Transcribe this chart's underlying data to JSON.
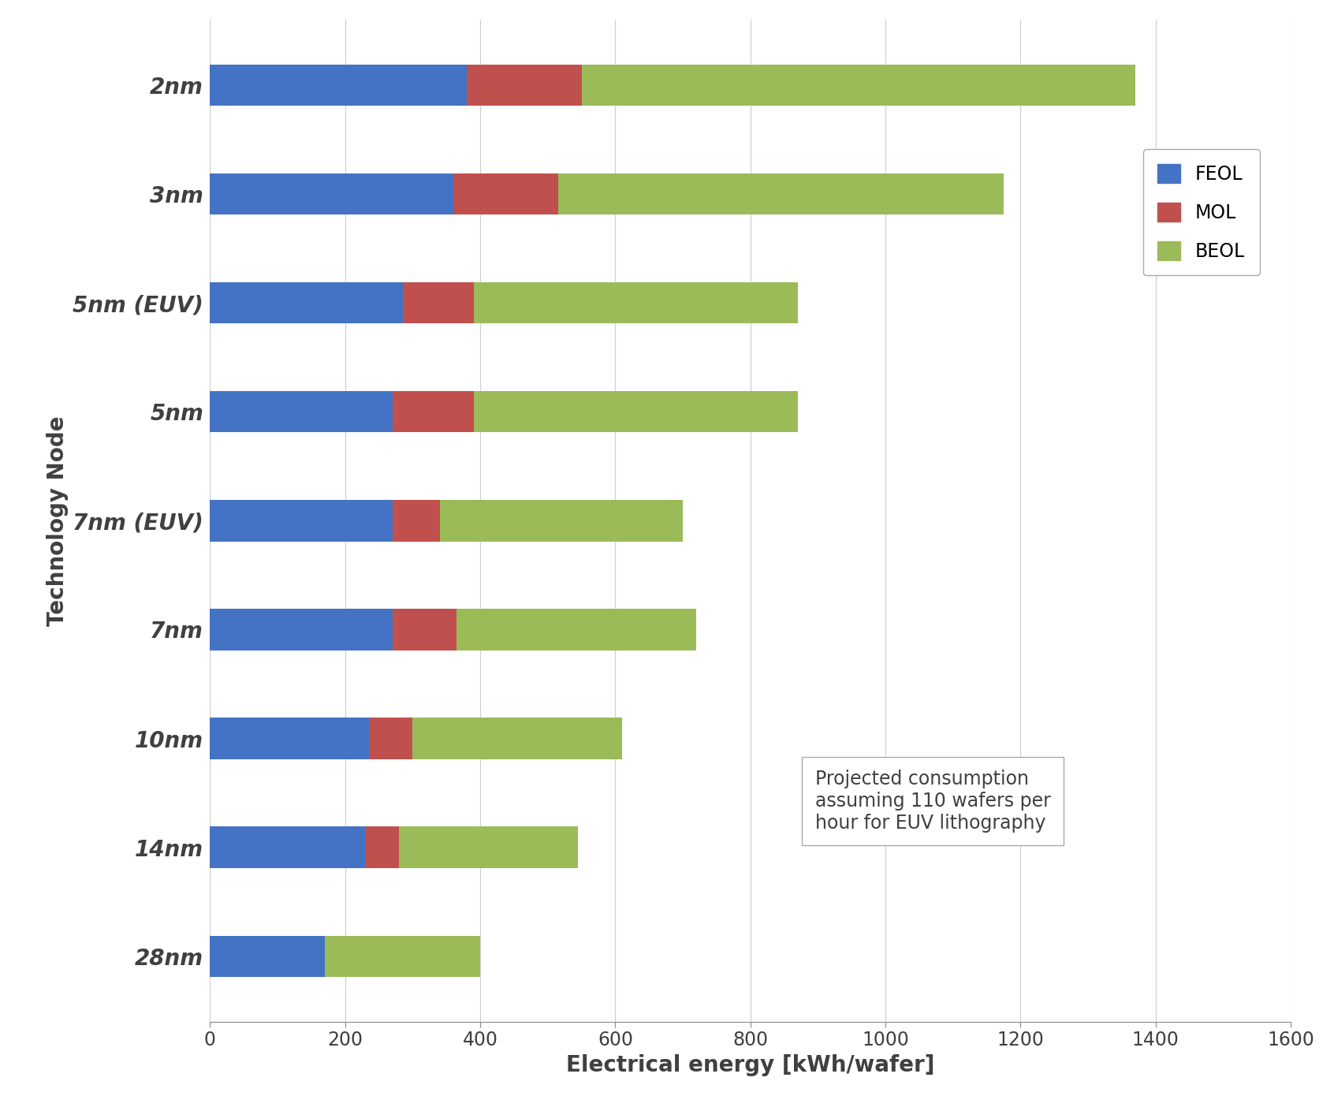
{
  "categories": [
    "28nm",
    "14nm",
    "10nm",
    "7nm",
    "7nm (EUV)",
    "5nm",
    "5nm (EUV)",
    "3nm",
    "2nm"
  ],
  "FEOL": [
    170,
    230,
    235,
    270,
    270,
    270,
    285,
    360,
    380
  ],
  "MOL": [
    0,
    50,
    65,
    95,
    70,
    120,
    105,
    155,
    170
  ],
  "BEOL": [
    230,
    265,
    310,
    355,
    360,
    480,
    480,
    660,
    820
  ],
  "feol_color": "#4472C4",
  "mol_color": "#C0504D",
  "beol_color": "#9BBB59",
  "xlabel": "Electrical energy [kWh/wafer]",
  "ylabel": "Technology Node",
  "xlim": [
    0,
    1600
  ],
  "xticks": [
    0,
    200,
    400,
    600,
    800,
    1000,
    1200,
    1400,
    1600
  ],
  "annotation": "Projected consumption\nassuming 110 wafers per\nhour for EUV lithography",
  "background_color": "#FFFFFF",
  "grid_color": "#D0D0D0",
  "legend_labels": [
    "FEOL",
    "MOL",
    "BEOL"
  ],
  "bar_height": 0.38,
  "xlabel_fontsize": 20,
  "ylabel_fontsize": 20,
  "tick_fontsize": 17,
  "legend_fontsize": 17,
  "ytick_fontsize": 20,
  "annotation_fontsize": 17
}
